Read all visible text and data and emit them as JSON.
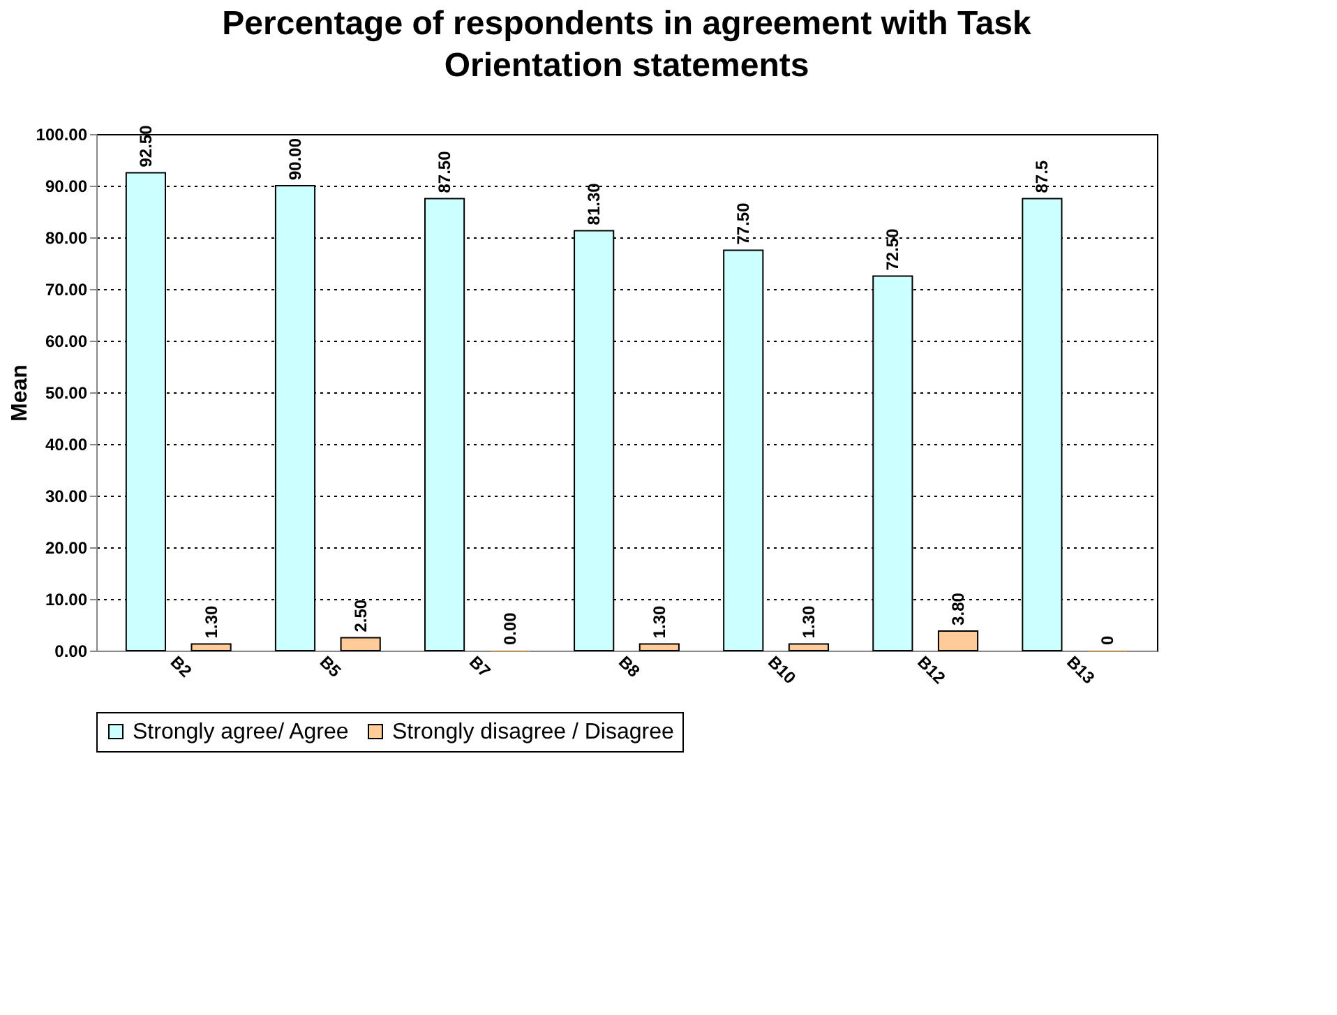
{
  "chart_data": {
    "type": "bar",
    "title": "Percentage of respondents in agreement with Task Orientation statements",
    "ylabel": "Mean",
    "categories": [
      "B2",
      "B5",
      "B7",
      "B8",
      "B10",
      "B12",
      "B13"
    ],
    "series": [
      {
        "name": "Strongly agree/ Agree",
        "color": "#ccffff",
        "values": [
          92.5,
          90.0,
          87.5,
          81.3,
          77.5,
          72.5,
          87.5
        ],
        "value_labels": [
          "92.50",
          "90.00",
          "87.50",
          "81.30",
          "77.50",
          "72.50",
          "87.5"
        ]
      },
      {
        "name": "Strongly disagree / Disagree",
        "color": "#ffcc99",
        "values": [
          1.3,
          2.5,
          0.0,
          1.3,
          1.3,
          3.8,
          0
        ],
        "value_labels": [
          "1.30",
          "2.50",
          "0.00",
          "1.30",
          "1.30",
          "3.80",
          "0"
        ]
      }
    ],
    "ylim": [
      0,
      100
    ],
    "yticks": [
      {
        "value": 0,
        "label": "0.00"
      },
      {
        "value": 10,
        "label": "10.00"
      },
      {
        "value": 20,
        "label": "20.00"
      },
      {
        "value": 30,
        "label": "30.00"
      },
      {
        "value": 40,
        "label": "40.00"
      },
      {
        "value": 50,
        "label": "50.00"
      },
      {
        "value": 60,
        "label": "60.00"
      },
      {
        "value": 70,
        "label": "70.00"
      },
      {
        "value": 80,
        "label": "80.00"
      },
      {
        "value": 90,
        "label": "90.00"
      },
      {
        "value": 100,
        "label": "100.00"
      }
    ],
    "grid": "y",
    "legend": "bottom"
  }
}
